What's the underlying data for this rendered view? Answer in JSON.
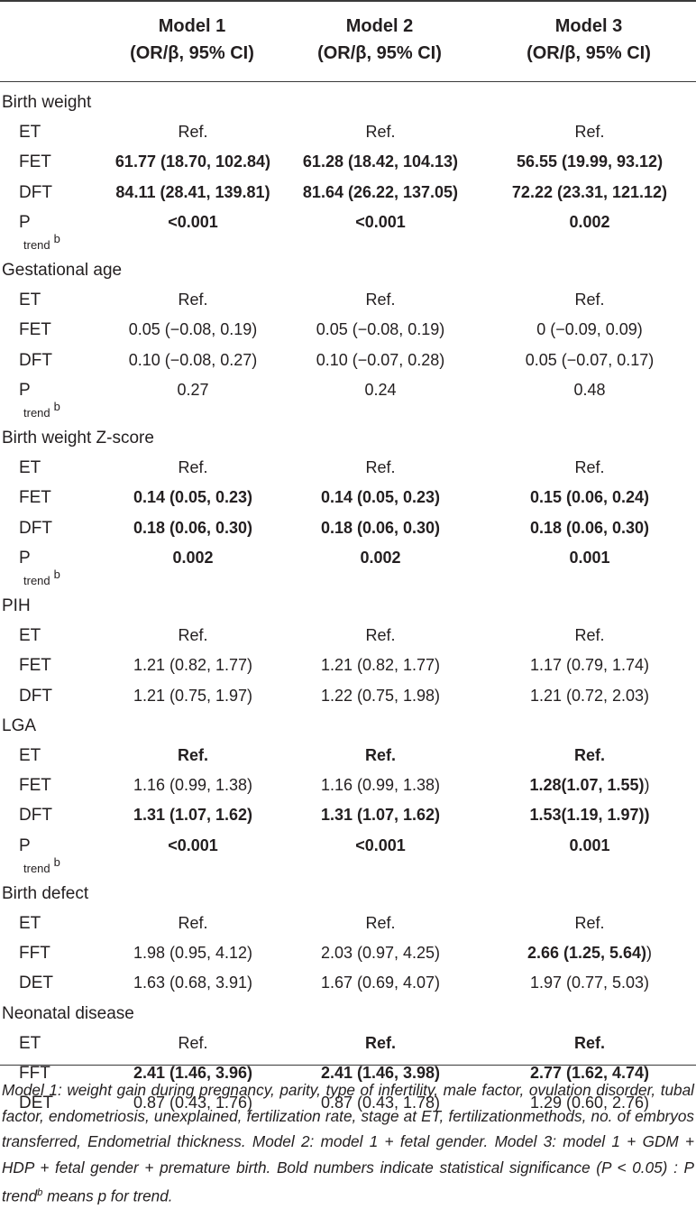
{
  "headers": [
    {
      "model": "Model 1",
      "metric": "(OR/β, 95% CI)"
    },
    {
      "model": "Model 2",
      "metric": "(OR/β, 95% CI)"
    },
    {
      "model": "Model 3",
      "metric": "(OR/β, 95% CI)"
    }
  ],
  "sections": [
    {
      "title": "Birth weight",
      "rows": [
        {
          "label": "ET",
          "cells": [
            {
              "text": "Ref."
            },
            {
              "text": "Ref."
            },
            {
              "text": "Ref."
            }
          ]
        },
        {
          "label": "FET",
          "cells": [
            {
              "text": "61.77 (18.70, 102.84)",
              "bold": true
            },
            {
              "text": "61.28 (18.42, 104.13)",
              "bold": true
            },
            {
              "text": "56.55 (19.99, 93.12)",
              "bold": true
            }
          ]
        },
        {
          "label": "DFT",
          "cells": [
            {
              "text": "84.11 (28.41, 139.81)",
              "bold": true
            },
            {
              "text": "81.64 (26.22, 137.05)",
              "bold": true
            },
            {
              "text": "72.22 (23.31, 121.12)",
              "bold": true
            }
          ]
        },
        {
          "label": "P",
          "sub": "trend",
          "sup": "b",
          "cells": [
            {
              "text": "<0.001",
              "bold": true
            },
            {
              "text": "<0.001",
              "bold": true
            },
            {
              "text": "0.002",
              "bold": true
            }
          ]
        }
      ]
    },
    {
      "title": "Gestational age",
      "rows": [
        {
          "label": "ET",
          "cells": [
            {
              "text": "Ref."
            },
            {
              "text": "Ref."
            },
            {
              "text": "Ref."
            }
          ]
        },
        {
          "label": "FET",
          "cells": [
            {
              "text": "0.05 (−0.08, 0.19)"
            },
            {
              "text": "0.05 (−0.08, 0.19)"
            },
            {
              "text": "0 (−0.09, 0.09)"
            }
          ]
        },
        {
          "label": "DFT",
          "cells": [
            {
              "text": "0.10 (−0.08, 0.27)"
            },
            {
              "text": "0.10 (−0.07, 0.28)"
            },
            {
              "text": "0.05 (−0.07, 0.17)"
            }
          ]
        },
        {
          "label": "P",
          "sub": "trend",
          "sup": "b",
          "cells": [
            {
              "text": "0.27"
            },
            {
              "text": "0.24"
            },
            {
              "text": "0.48"
            }
          ]
        }
      ]
    },
    {
      "title": "Birth weight Z-score",
      "rows": [
        {
          "label": "ET",
          "cells": [
            {
              "text": "Ref."
            },
            {
              "text": "Ref."
            },
            {
              "text": "Ref."
            }
          ]
        },
        {
          "label": "FET",
          "cells": [
            {
              "text": "0.14 (0.05, 0.23)",
              "bold": true
            },
            {
              "text": "0.14 (0.05, 0.23)",
              "bold": true
            },
            {
              "text": "0.15 (0.06, 0.24)",
              "bold": true
            }
          ]
        },
        {
          "label": "DFT",
          "cells": [
            {
              "text": "0.18 (0.06, 0.30)",
              "bold": true
            },
            {
              "text": "0.18 (0.06, 0.30)",
              "bold": true
            },
            {
              "text": "0.18 (0.06, 0.30)",
              "bold": true
            }
          ]
        },
        {
          "label": "P",
          "sub": "trend",
          "sup": "b",
          "cells": [
            {
              "text": "0.002",
              "bold": true
            },
            {
              "text": "0.002",
              "bold": true
            },
            {
              "text": "0.001",
              "bold": true
            }
          ]
        }
      ]
    },
    {
      "title": "PIH",
      "rows": [
        {
          "label": "ET",
          "cells": [
            {
              "text": "Ref."
            },
            {
              "text": "Ref."
            },
            {
              "text": "Ref."
            }
          ]
        },
        {
          "label": "FET",
          "cells": [
            {
              "text": "1.21 (0.82, 1.77)"
            },
            {
              "text": "1.21 (0.82, 1.77)"
            },
            {
              "text": "1.17 (0.79, 1.74)"
            }
          ]
        },
        {
          "label": "DFT",
          "cells": [
            {
              "text": "1.21 (0.75, 1.97)"
            },
            {
              "text": "1.22 (0.75, 1.98)"
            },
            {
              "text": "1.21 (0.72, 2.03)"
            }
          ]
        }
      ]
    },
    {
      "title": "LGA",
      "rows": [
        {
          "label": "ET",
          "cells": [
            {
              "text": "Ref.",
              "bold": true
            },
            {
              "text": "Ref.",
              "bold": true
            },
            {
              "text": "Ref.",
              "bold": true
            }
          ]
        },
        {
          "label": "FET",
          "cells": [
            {
              "text": "1.16 (0.99, 1.38)"
            },
            {
              "text": "1.16 (0.99, 1.38)"
            },
            {
              "text": "1.28(1.07, 1.55)",
              "bold": true,
              "tail": ")"
            }
          ]
        },
        {
          "label": "DFT",
          "cells": [
            {
              "text": "1.31 (1.07, 1.62)",
              "bold": true
            },
            {
              "text": "1.31 (1.07, 1.62)",
              "bold": true
            },
            {
              "text": "1.53(1.19, 1.97))",
              "bold": true
            }
          ]
        },
        {
          "label": "P",
          "sub": "trend",
          "sup": "b",
          "cells": [
            {
              "text": "<0.001",
              "bold": true
            },
            {
              "text": "<0.001",
              "bold": true
            },
            {
              "text": "0.001",
              "bold": true
            }
          ]
        }
      ]
    },
    {
      "title": "Birth defect",
      "rows": [
        {
          "label": "ET",
          "cells": [
            {
              "text": "Ref."
            },
            {
              "text": "Ref."
            },
            {
              "text": "Ref."
            }
          ]
        },
        {
          "label": "FFT",
          "cells": [
            {
              "text": "1.98 (0.95, 4.12)"
            },
            {
              "text": "2.03 (0.97, 4.25)"
            },
            {
              "text": "2.66 (1.25, 5.64)",
              "bold": true,
              "tail": ")"
            }
          ]
        },
        {
          "label": "DET",
          "cells": [
            {
              "text": "1.63 (0.68, 3.91)"
            },
            {
              "text": "1.67 (0.69, 4.07)"
            },
            {
              "text": "1.97 (0.77, 5.03)"
            }
          ]
        }
      ]
    },
    {
      "title": "Neonatal disease",
      "rows": [
        {
          "label": "ET",
          "cells": [
            {
              "text": "Ref."
            },
            {
              "text": "Ref.",
              "bold": true
            },
            {
              "text": "Ref.",
              "bold": true
            }
          ]
        },
        {
          "label": "FFT",
          "cells": [
            {
              "text": "2.41 (1.46, 3.96)",
              "bold": true
            },
            {
              "text": "2.41 (1.46, 3.98)",
              "bold": true
            },
            {
              "text": "2.77 (1.62, 4.74)",
              "bold": true
            }
          ]
        },
        {
          "label": "DET",
          "cells": [
            {
              "text": "0.87 (0.43, 1.76)"
            },
            {
              "text": "0.87 (0.43, 1.78)"
            },
            {
              "text": "1.29 (0.60, 2.76)"
            }
          ]
        }
      ]
    }
  ],
  "footnote": {
    "main": "Model 1: weight gain during pregnancy, parity, type of infertility, male factor, ovulation disorder, tubal factor, endometriosis, unexplained, fertilization rate, stage at ET, fertilizationmethods, no. of embryos transferred, Endometrial thickness. Model 2: model 1 + fetal gender. Model 3: model 1 + GDM + HDP + fetal gender + premature birth. Bold numbers indicate statistical significance (P < 0.05)",
    "sep": " : ",
    "trend_prefix": "P trend",
    "trend_sup": "b",
    "trend_suffix": " means p for trend."
  }
}
